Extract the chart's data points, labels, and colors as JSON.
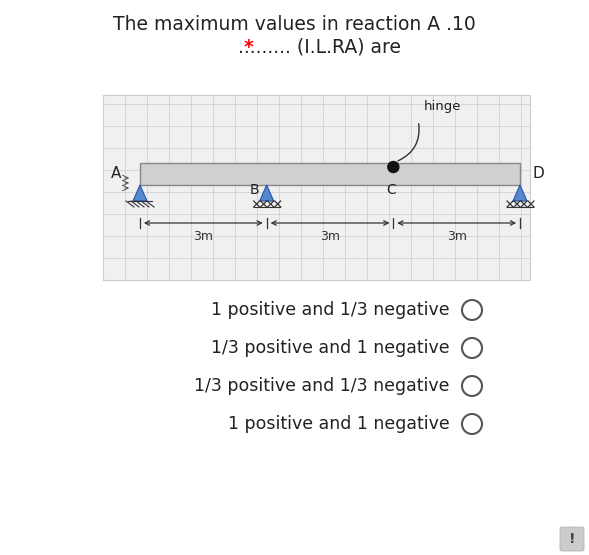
{
  "title_line1": "The maximum values in reaction A .10",
  "title_line2": "......... (I.L.RA) are",
  "title_star": "*",
  "hinge_label": "hinge",
  "beam_label_A": "A",
  "beam_label_B": "B",
  "beam_label_C": "C",
  "beam_label_D": "D",
  "dim_labels": [
    "3m",
    "3m",
    "3m"
  ],
  "options": [
    "1 positive and 1/3 negative",
    "1/3 positive and 1 negative",
    "1/3 positive and 1/3 negative",
    "1 positive and 1 negative"
  ],
  "bg_color": "#ffffff",
  "panel_bg": "#ebebeb",
  "beam_fill": "#d0d0d0",
  "beam_edge": "#888888",
  "grid_color": "#cccccc",
  "text_color": "#222222",
  "support_fill": "#5588cc",
  "support_edge": "#2255aa",
  "title_fontsize": 13.5,
  "option_fontsize": 12.5,
  "circle_color": "#555555",
  "dim_text_color": "#333333"
}
